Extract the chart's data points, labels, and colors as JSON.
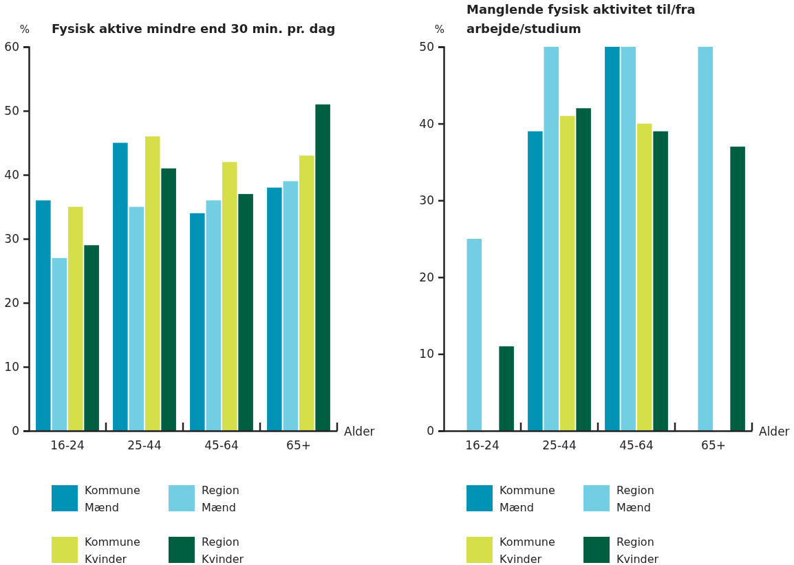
{
  "chart_data": [
    {
      "type": "bar",
      "title": "Fysisk aktive mindre end 30 min. pr. dag",
      "ylabel": "%",
      "xlabel": "Alder",
      "categories": [
        "16-24",
        "25-44",
        "45-64",
        "65+"
      ],
      "series": [
        {
          "name": "Kommune Mænd",
          "color": "#0093b5",
          "values": [
            36,
            45,
            34,
            38
          ]
        },
        {
          "name": "Region Mænd",
          "color": "#73cee3",
          "values": [
            27,
            35,
            36,
            39
          ]
        },
        {
          "name": "Kommune Kvinder",
          "color": "#d4df4a",
          "values": [
            35,
            46,
            42,
            43
          ]
        },
        {
          "name": "Region Kvinder",
          "color": "#005e41",
          "values": [
            29,
            41,
            37,
            51
          ]
        }
      ],
      "ylim": [
        0,
        60
      ],
      "yticks": [
        0,
        10,
        20,
        30,
        40,
        50,
        60
      ],
      "grid": false,
      "legend": "bottom"
    },
    {
      "type": "bar",
      "title": "Manglende fysisk aktivitet til/fra arbejde/studium",
      "ylabel": "%",
      "xlabel": "Alder",
      "categories": [
        "16-24",
        "25-44",
        "45-64",
        "65+"
      ],
      "series": [
        {
          "name": "Kommune Mænd",
          "color": "#0093b5",
          "values": [
            null,
            39,
            50,
            null
          ]
        },
        {
          "name": "Region Mænd",
          "color": "#73cee3",
          "values": [
            25,
            50,
            50,
            50
          ]
        },
        {
          "name": "Kommune Kvinder",
          "color": "#d4df4a",
          "values": [
            null,
            41,
            40,
            null
          ]
        },
        {
          "name": "Region Kvinder",
          "color": "#005e41",
          "values": [
            11,
            42,
            39,
            37
          ]
        }
      ],
      "ylim": [
        0,
        50
      ],
      "yticks": [
        0,
        10,
        20,
        30,
        40,
        50
      ],
      "grid": false,
      "legend": "bottom"
    }
  ]
}
